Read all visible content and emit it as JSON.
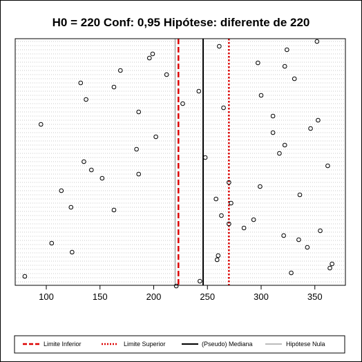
{
  "chart_data": {
    "type": "scatter",
    "title": "H0 = 220 Conf: 0,95 Hipótese: diferente de 220",
    "xlabel": "",
    "ylabel": "",
    "xlim": [
      70,
      375
    ],
    "xticks": [
      100,
      150,
      200,
      250,
      300,
      350
    ],
    "grid": true,
    "legend_position": "bottom",
    "points": [
      [
        352,
        60
      ],
      [
        261,
        67
      ],
      [
        324,
        72
      ],
      [
        199,
        78
      ],
      [
        297,
        91
      ],
      [
        196,
        84
      ],
      [
        322,
        96
      ],
      [
        169,
        102
      ],
      [
        212,
        108
      ],
      [
        331,
        114
      ],
      [
        132,
        120
      ],
      [
        163,
        126
      ],
      [
        242,
        132
      ],
      [
        300,
        138
      ],
      [
        137,
        144
      ],
      [
        227,
        150
      ],
      [
        265,
        156
      ],
      [
        186,
        162
      ],
      [
        311,
        168
      ],
      [
        353,
        174
      ],
      [
        95,
        180
      ],
      [
        346,
        186
      ],
      [
        311,
        192
      ],
      [
        202,
        198
      ],
      [
        322,
        210
      ],
      [
        184,
        216
      ],
      [
        317,
        222
      ],
      [
        248,
        228
      ],
      [
        135,
        234
      ],
      [
        362,
        240
      ],
      [
        142,
        246
      ],
      [
        186,
        252
      ],
      [
        152,
        258
      ],
      [
        270,
        264
      ],
      [
        299,
        270
      ],
      [
        114,
        276
      ],
      [
        336,
        282
      ],
      [
        258,
        288
      ],
      [
        272,
        294
      ],
      [
        123,
        300
      ],
      [
        163,
        304
      ],
      [
        263,
        312
      ],
      [
        293,
        318
      ],
      [
        270,
        324
      ],
      [
        284,
        330
      ],
      [
        355,
        334
      ],
      [
        321,
        341
      ],
      [
        335,
        347
      ],
      [
        105,
        352
      ],
      [
        343,
        358
      ],
      [
        124,
        365
      ],
      [
        260,
        370
      ],
      [
        259,
        376
      ],
      [
        366,
        382
      ],
      [
        364,
        388
      ],
      [
        328,
        395
      ],
      [
        80,
        400
      ],
      [
        243,
        407
      ],
      [
        221,
        414
      ]
    ],
    "vlines": [
      {
        "name": "Limite Inferior",
        "value": 223,
        "color": "#dd0000",
        "style": "dashed"
      },
      {
        "name": "Limite Superior",
        "value": 270,
        "color": "#dd0000",
        "style": "dotted"
      },
      {
        "name": "(Pseudo) Mediana",
        "value": 246,
        "color": "#000000",
        "style": "solid"
      },
      {
        "name": "Hipótese Nula",
        "value": 220,
        "color": "#bbbbbb",
        "style": "solid"
      }
    ]
  },
  "legend": {
    "items": [
      "Limite Inferior",
      "Limite Superior",
      "(Pseudo) Mediana",
      "Hipótese Nula"
    ]
  }
}
